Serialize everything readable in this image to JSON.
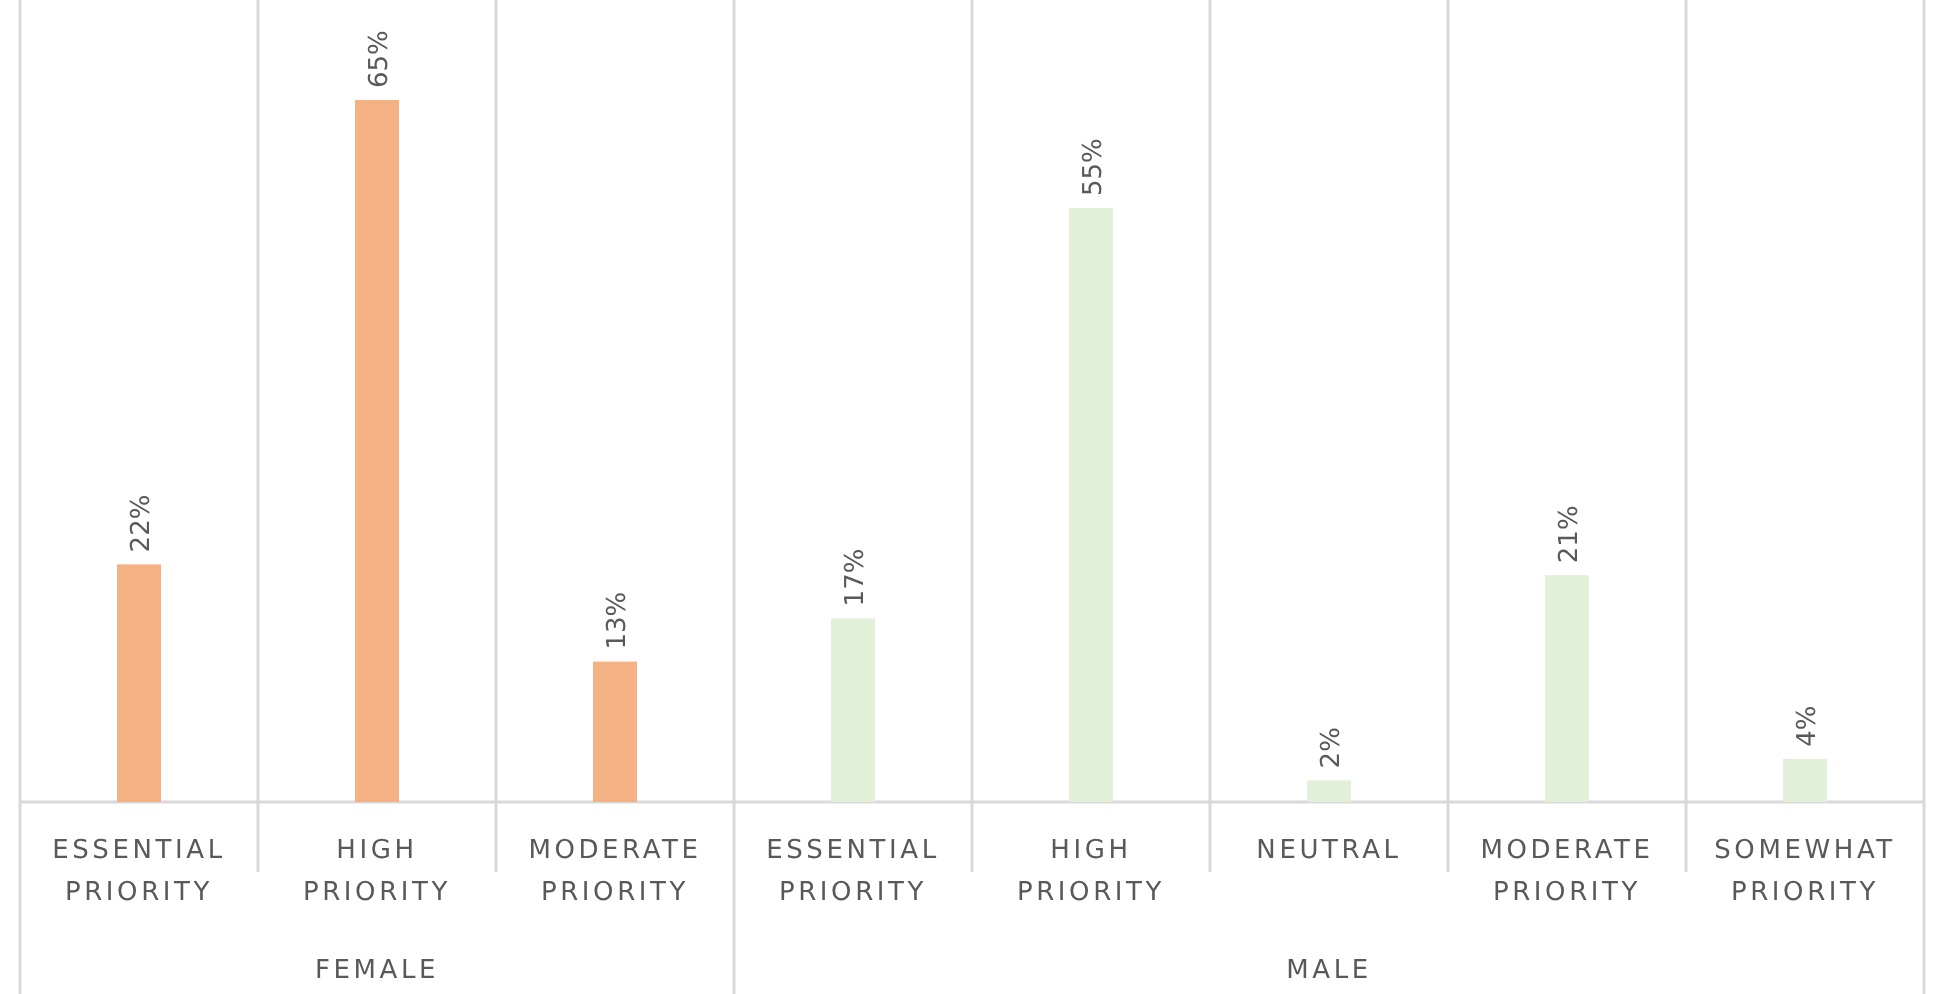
{
  "chart_data": {
    "type": "bar",
    "categories": [
      "ESSENTIAL PRIORITY",
      "HIGH PRIORITY",
      "MODERATE PRIORITY",
      "ESSENTIAL PRIORITY",
      "HIGH PRIORITY",
      "NEUTRAL",
      "MODERATE PRIORITY",
      "SOMEWHAT PRIORITY"
    ],
    "series": [
      {
        "color": "#f4b183",
        "values": [
          22,
          65,
          13,
          null,
          null,
          null,
          null,
          null
        ],
        "value_labels": [
          "22%",
          "65%",
          "13%",
          null,
          null,
          null,
          null,
          null
        ]
      },
      {
        "color": "#e2efd9",
        "values": [
          null,
          null,
          null,
          17,
          55,
          2,
          21,
          4
        ],
        "value_labels": [
          null,
          null,
          null,
          "17%",
          "55%",
          "2%",
          "21%",
          "4%"
        ]
      }
    ],
    "annotations": [
      "FEMALE",
      "MALE"
    ],
    "grid": "x"
  }
}
